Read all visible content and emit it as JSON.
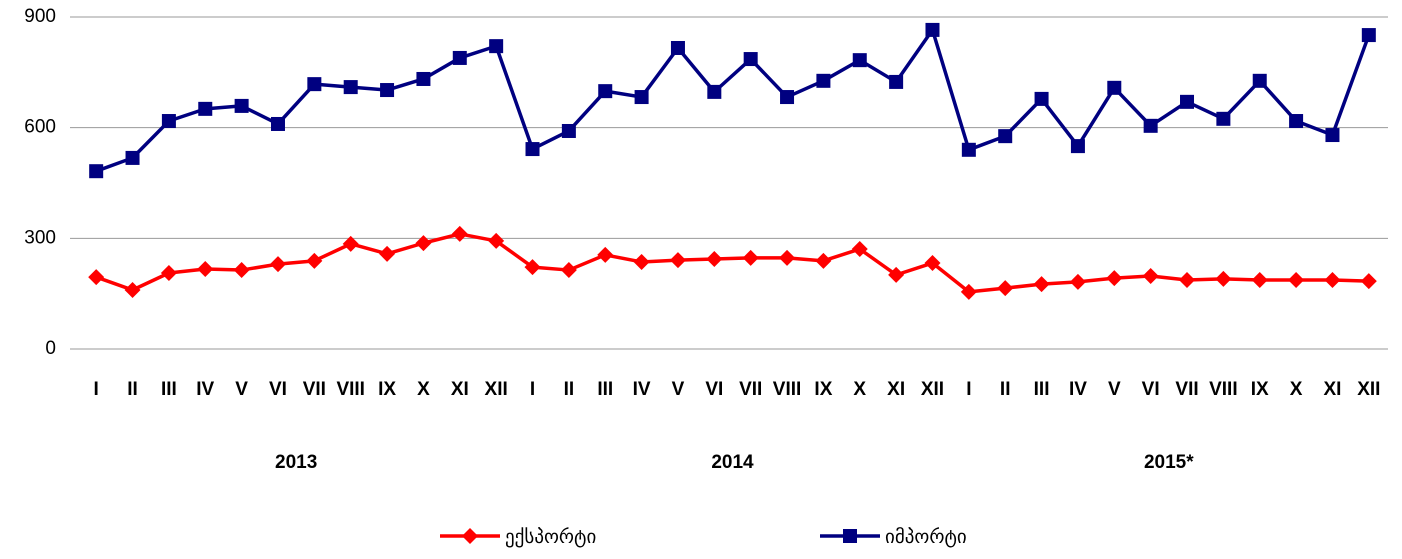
{
  "chart_data": {
    "type": "line",
    "categories": [
      "I",
      "II",
      "III",
      "IV",
      "V",
      "VI",
      "VII",
      "VIII",
      "IX",
      "X",
      "XI",
      "XII",
      "I",
      "II",
      "III",
      "IV",
      "V",
      "VI",
      "VII",
      "VIII",
      "IX",
      "X",
      "XI",
      "XII",
      "I",
      "II",
      "III",
      "IV",
      "V",
      "VI",
      "VII",
      "VIII",
      "IX",
      "X",
      "XI",
      "XII"
    ],
    "groups": [
      "2013",
      "2014",
      "2015*"
    ],
    "series": [
      {
        "name": "ექსპორტი",
        "color": "#ff0000",
        "marker": "diamond",
        "values": [
          195,
          160,
          206,
          217,
          214,
          230,
          239,
          285,
          258,
          287,
          312,
          293,
          222,
          214,
          255,
          236,
          241,
          244,
          247,
          247,
          239,
          271,
          201,
          233,
          155,
          165,
          176,
          182,
          192,
          198,
          187,
          190,
          187,
          187,
          187,
          184
        ]
      },
      {
        "name": "იმპორტი",
        "color": "#000080",
        "marker": "square",
        "values": [
          482,
          518,
          618,
          651,
          659,
          610,
          718,
          710,
          702,
          732,
          789,
          821,
          542,
          591,
          699,
          683,
          816,
          697,
          786,
          683,
          727,
          783,
          724,
          865,
          540,
          577,
          678,
          550,
          708,
          605,
          670,
          624,
          727,
          618,
          580,
          851
        ]
      }
    ],
    "ylim": [
      0,
      900
    ],
    "yticks": [
      0,
      300,
      600,
      900
    ],
    "grid": true,
    "legend": "bottom"
  }
}
